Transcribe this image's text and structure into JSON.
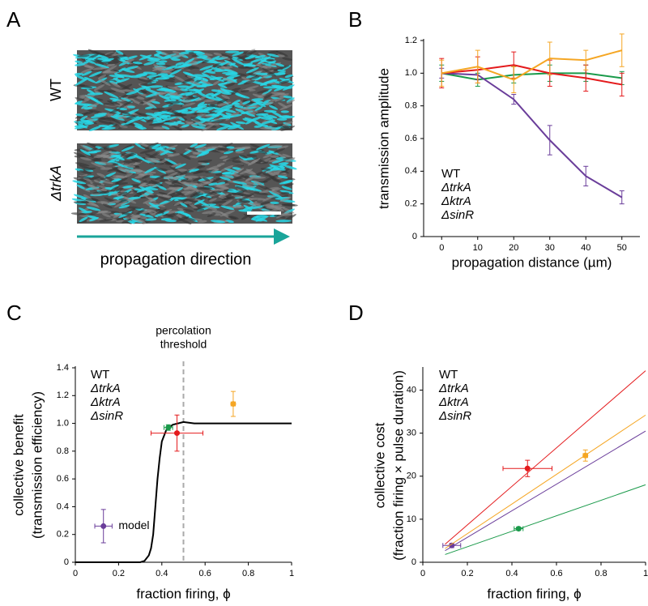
{
  "panel_labels": [
    "A",
    "B",
    "C",
    "D"
  ],
  "panel_a": {
    "rows": [
      {
        "label": "WT",
        "color": "#1a9a4a"
      },
      {
        "label": "ΔtrkA",
        "color": "#6a3d9a"
      }
    ],
    "arrow_label": "propagation direction",
    "arrow_color": "#1aa59a"
  },
  "chart_data": [
    {
      "type": "line",
      "x_label": "propagation distance (µm)",
      "y_label": [
        "transmission amplitude"
      ],
      "xlim": [
        -5,
        55
      ],
      "ylim": [
        0,
        1.2
      ],
      "xticks": [
        0,
        10,
        20,
        30,
        40,
        50
      ],
      "yticks": [
        0,
        0.2,
        0.4,
        0.6,
        0.8,
        {
          "value": 1,
          "label": "1.0"
        },
        1.2
      ],
      "series": [
        {
          "name": "WT",
          "color": "#1a9a4a",
          "x": [
            0,
            10,
            20,
            30,
            40,
            50
          ],
          "values": [
            1.0,
            0.96,
            0.99,
            1.0,
            1.0,
            0.97
          ],
          "y_error": [
            0.05,
            0.04,
            0.05,
            0.05,
            0.05,
            0.04
          ]
        },
        {
          "name": "ΔtrkA",
          "color": "#6a3d9a",
          "x": [
            0,
            10,
            20,
            30,
            40,
            50
          ],
          "values": [
            1.0,
            0.99,
            0.84,
            0.59,
            0.37,
            0.24
          ],
          "y_error": [
            0.03,
            0.03,
            0.03,
            0.09,
            0.06,
            0.04
          ]
        },
        {
          "name": "ΔktrA",
          "color": "#e41a1c",
          "x": [
            0,
            10,
            20,
            30,
            40,
            50
          ],
          "values": [
            1.0,
            1.02,
            1.05,
            1.0,
            0.97,
            0.93
          ],
          "y_error": [
            0.09,
            0.08,
            0.08,
            0.08,
            0.08,
            0.07
          ]
        },
        {
          "name": "ΔsinR",
          "color": "#f5a623",
          "x": [
            0,
            10,
            20,
            30,
            40,
            50
          ],
          "values": [
            1.0,
            1.04,
            0.96,
            1.09,
            1.08,
            1.14
          ],
          "y_error": [
            0.08,
            0.1,
            0.08,
            0.1,
            0.06,
            0.1
          ]
        }
      ]
    },
    {
      "type": "scatter",
      "x_label": "fraction firing, ϕ",
      "y_label": [
        "collective benefit",
        "(transmission efficiency)"
      ],
      "xlim": [
        0,
        1
      ],
      "ylim": [
        0,
        1.4
      ],
      "xticks": [
        0,
        0.2,
        0.4,
        0.6,
        0.8,
        1
      ],
      "yticks": [
        0,
        0.2,
        0.4,
        0.6,
        0.8,
        {
          "value": 1,
          "label": "1.0"
        },
        1.2,
        1.4
      ],
      "threshold": {
        "x": 0.5,
        "label": [
          "percolation",
          "threshold"
        ]
      },
      "model": {
        "label": "model",
        "color": "#000000",
        "x": [
          0,
          0.3,
          0.32,
          0.34,
          0.35,
          0.36,
          0.37,
          0.38,
          0.39,
          0.4,
          0.42,
          0.45,
          0.5,
          0.55,
          1
        ],
        "values": [
          0,
          0,
          0.01,
          0.05,
          0.1,
          0.2,
          0.4,
          0.6,
          0.75,
          0.87,
          0.95,
          0.99,
          1.01,
          1.0,
          1.0
        ]
      },
      "series": [
        {
          "name": "WT",
          "color": "#1a9a4a",
          "x": [
            0.43
          ],
          "values": [
            0.97
          ],
          "x_error": [
            0.02
          ],
          "y_error": [
            0.02
          ]
        },
        {
          "name": "ΔtrkA",
          "color": "#6a3d9a",
          "x": [
            0.13
          ],
          "values": [
            0.26
          ],
          "x_error": [
            0.04
          ],
          "y_error": [
            0.12
          ]
        },
        {
          "name": "ΔktrA",
          "color": "#e41a1c",
          "x": [
            0.47
          ],
          "values": [
            0.93
          ],
          "x_error": [
            0.12
          ],
          "y_error": [
            0.13
          ]
        },
        {
          "name": "ΔsinR",
          "color": "#f5a623",
          "x": [
            0.73
          ],
          "values": [
            1.14
          ],
          "x_error": [
            0.01
          ],
          "y_error": [
            0.09
          ]
        }
      ]
    },
    {
      "type": "scatter",
      "x_label": "fraction firing, ϕ",
      "y_label": [
        "collective cost",
        "(fraction firing × pulse duration)"
      ],
      "xlim": [
        0,
        1
      ],
      "ylim": [
        0,
        45
      ],
      "xticks": [
        0,
        0.2,
        0.4,
        0.6,
        0.8,
        1
      ],
      "yticks": [
        0,
        10,
        20,
        30,
        40
      ],
      "series": [
        {
          "name": "WT",
          "color": "#1a9a4a",
          "x": [
            0.43
          ],
          "values": [
            7.8
          ],
          "x_error": [
            0.02
          ],
          "y_error": [
            0.4
          ],
          "fit": {
            "x": [
              0.1,
              1
            ],
            "values": [
              1.8,
              18
            ]
          }
        },
        {
          "name": "ΔtrkA",
          "color": "#6a3d9a",
          "x": [
            0.13
          ],
          "values": [
            3.9
          ],
          "x_error": [
            0.04
          ],
          "y_error": [
            0.5
          ],
          "fit": {
            "x": [
              0.1,
              1
            ],
            "values": [
              2.7,
              30.5
            ]
          }
        },
        {
          "name": "ΔktrA",
          "color": "#e41a1c",
          "x": [
            0.47
          ],
          "values": [
            21.8
          ],
          "x_error": [
            0.11
          ],
          "y_error": [
            1.9
          ],
          "fit": {
            "x": [
              0.1,
              1
            ],
            "values": [
              4.2,
              44.5
            ]
          }
        },
        {
          "name": "ΔsinR",
          "color": "#f5a623",
          "x": [
            0.73
          ],
          "values": [
            24.8
          ],
          "x_error": [
            0.01
          ],
          "y_error": [
            1.3
          ],
          "fit": {
            "x": [
              0.1,
              1
            ],
            "values": [
              3.2,
              34.2
            ]
          }
        }
      ]
    }
  ]
}
